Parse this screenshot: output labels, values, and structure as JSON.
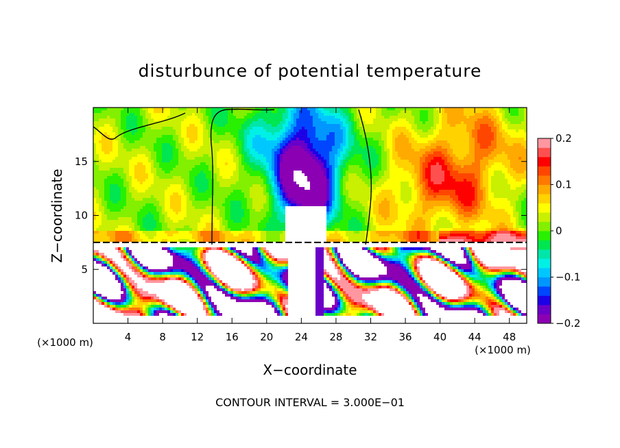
{
  "chart_data": {
    "type": "heatmap",
    "title": "disturbunce of potential temperature",
    "xlabel": "X−coordinate",
    "ylabel": "Z−coordinate",
    "x_unit_left": "(×1000 m)",
    "x_unit_right": "(×1000 m)",
    "footer": "CONTOUR INTERVAL = 3.000E−01",
    "xlim": [
      0,
      50
    ],
    "ylim": [
      0,
      20
    ],
    "x_ticks": [
      4,
      8,
      12,
      16,
      20,
      24,
      28,
      32,
      36,
      40,
      44,
      48
    ],
    "y_ticks": [
      5,
      10,
      15
    ],
    "colorbar": {
      "range": [
        -0.2,
        0.2
      ],
      "tick_values": [
        0.2,
        0.1,
        0,
        -0.1,
        -0.2
      ],
      "tick_labels": [
        "0.2",
        "0.1",
        "0",
        "−0.1",
        "−0.2"
      ],
      "colors": [
        "#8c00b4",
        "#6a00c8",
        "#1e00e6",
        "#0046ff",
        "#0096ff",
        "#00c8ff",
        "#00f0e6",
        "#00e6aa",
        "#00e650",
        "#28f000",
        "#82f000",
        "#c8f000",
        "#ffff00",
        "#ffd200",
        "#ffaa00",
        "#ff7800",
        "#ff4600",
        "#ff0000",
        "#ff5050",
        "#ff96a0"
      ]
    },
    "features": [
      {
        "name": "upper cold anomaly",
        "x": 24,
        "z": 12,
        "value": -0.2
      },
      {
        "name": "upper warm anomaly",
        "x": 40,
        "z": 12,
        "value": 0.1
      },
      {
        "name": "interface layer",
        "z": 7.5
      }
    ]
  }
}
